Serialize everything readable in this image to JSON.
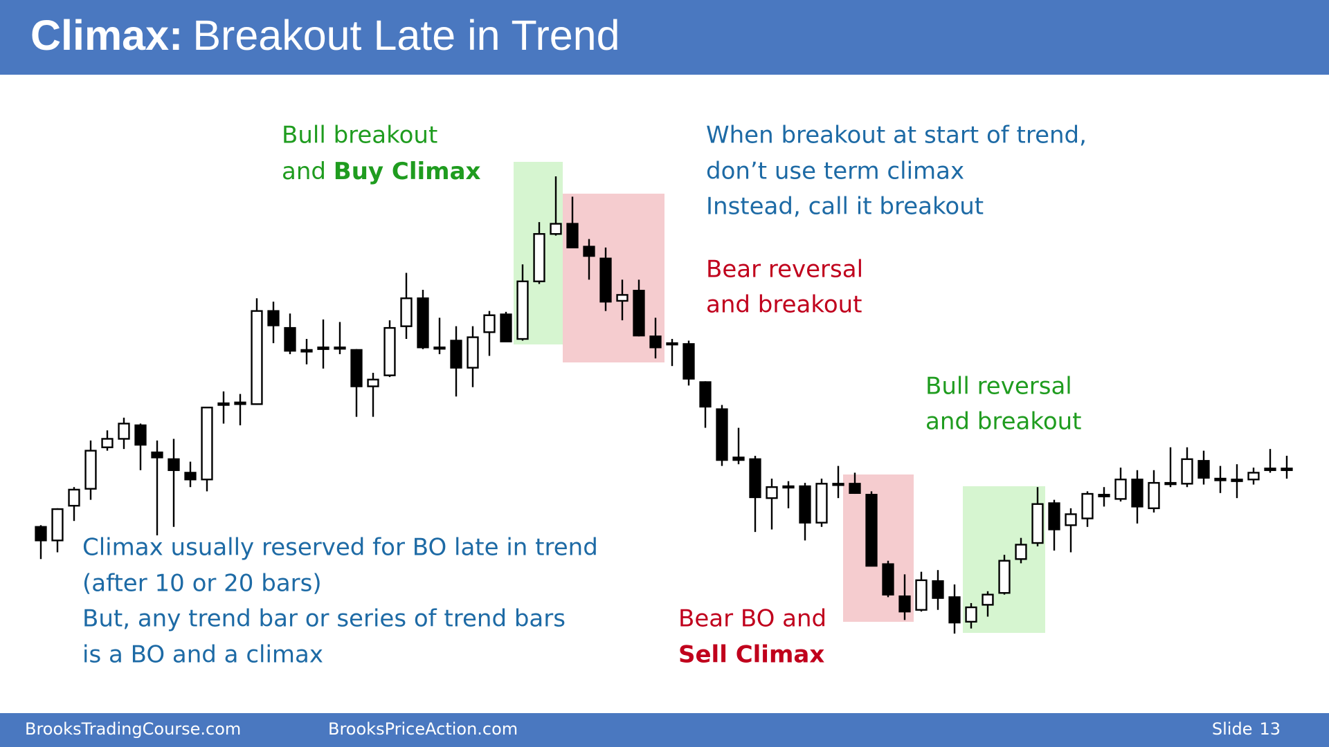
{
  "header": {
    "title_bold": "Climax:",
    "title_rest": "Breakout Late in Trend"
  },
  "annotations": {
    "bull_breakout": {
      "line1": "Bull breakout",
      "line2_plain": "and ",
      "line2_bold": "Buy Climax"
    },
    "start_of_trend": [
      "When breakout at start of trend,",
      "don’t use term climax",
      "Instead, call it breakout"
    ],
    "bear_reversal": [
      "Bear reversal",
      "and breakout"
    ],
    "bull_reversal": [
      "Bull reversal",
      "and breakout"
    ],
    "climax_note": [
      "Climax usually reserved for BO late in trend",
      "(after 10 or 20 bars)",
      "But, any trend bar or series of trend bars",
      "is a BO and a climax"
    ],
    "bear_bo": {
      "line1": "Bear BO and",
      "line2": "Sell Climax"
    }
  },
  "chart_data": {
    "type": "candlestick",
    "open": [
      278,
      262,
      303,
      323,
      372,
      382,
      398,
      366,
      358,
      342,
      334,
      424,
      425,
      423,
      533,
      513,
      487,
      490,
      490,
      487,
      444,
      457,
      515,
      548,
      490,
      498,
      466,
      508,
      529,
      500,
      568,
      624,
      636,
      609,
      595,
      545,
      557,
      503,
      495,
      494,
      449,
      417,
      360,
      358,
      312,
      326,
      326,
      283,
      329,
      329,
      316,
      234,
      196,
      180,
      214,
      195,
      166,
      186,
      200,
      240,
      259,
      306,
      280,
      288,
      316,
      311,
      334,
      300,
      330,
      329,
      356,
      335,
      334,
      334,
      347,
      347
    ],
    "high": [
      280,
      300,
      325,
      380,
      392,
      407,
      400,
      380,
      382,
      355,
      420,
      438,
      435,
      548,
      544,
      530,
      500,
      523,
      520,
      488,
      460,
      522,
      578,
      558,
      525,
      515,
      515,
      533,
      532,
      588,
      638,
      692,
      668,
      618,
      608,
      570,
      570,
      525,
      500,
      498,
      450,
      422,
      395,
      362,
      335,
      332,
      330,
      335,
      350,
      342,
      320,
      238,
      222,
      225,
      227,
      210,
      188,
      202,
      245,
      265,
      325,
      310,
      300,
      320,
      325,
      348,
      345,
      345,
      372,
      372,
      368,
      350,
      352,
      348,
      370,
      362
    ],
    "low": [
      240,
      248,
      285,
      310,
      368,
      370,
      345,
      268,
      278,
      325,
      320,
      400,
      398,
      422,
      495,
      482,
      470,
      465,
      482,
      408,
      408,
      455,
      500,
      488,
      482,
      432,
      443,
      480,
      497,
      498,
      565,
      622,
      607,
      570,
      533,
      522,
      503,
      477,
      468,
      445,
      395,
      350,
      352,
      272,
      275,
      300,
      262,
      278,
      312,
      317,
      232,
      195,
      168,
      178,
      180,
      152,
      158,
      172,
      198,
      235,
      255,
      250,
      248,
      278,
      302,
      308,
      282,
      295,
      325,
      325,
      328,
      318,
      312,
      328,
      342,
      335
    ],
    "close": [
      262,
      299,
      322,
      368,
      382,
      400,
      375,
      360,
      345,
      334,
      419,
      422,
      423,
      533,
      516,
      486,
      485,
      488,
      489,
      444,
      452,
      513,
      548,
      490,
      489,
      466,
      502,
      528,
      497,
      568,
      624,
      636,
      608,
      598,
      544,
      552,
      504,
      490,
      494,
      453,
      420,
      357,
      357,
      313,
      325,
      325,
      283,
      329,
      328,
      318,
      232,
      198,
      178,
      215,
      194,
      165,
      183,
      198,
      238,
      257,
      305,
      275,
      293,
      317,
      314,
      334,
      302,
      330,
      329,
      358,
      336,
      333,
      332,
      342,
      345,
      345
    ]
  },
  "footer": {
    "left": "BrooksTradingCourse.com",
    "middle": "BrooksPriceAction.com",
    "slide_label": "Slide",
    "slide_number": "13"
  }
}
